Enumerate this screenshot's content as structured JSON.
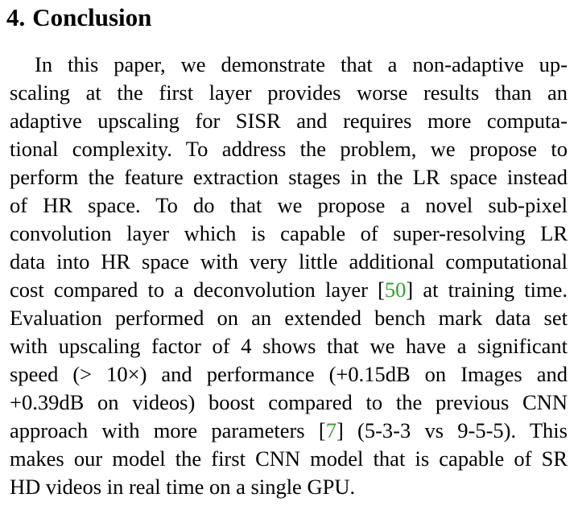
{
  "section": {
    "number": "4.",
    "title": "Conclusion"
  },
  "paragraph": {
    "lines": [
      [
        "In this paper, we demonstrate that a non-adaptive up-"
      ],
      [
        "scaling at the first layer provides worse results than an"
      ],
      [
        "adaptive upscaling for SISR and requires more computa-"
      ],
      [
        "tional complexity.  To address the problem, we propose to"
      ],
      [
        "perform the feature extraction stages in the LR space instead"
      ],
      [
        "of HR space.  To do that we propose a novel sub-pixel"
      ],
      [
        "convolution layer which is capable of super-resolving LR"
      ],
      [
        "data into HR space with very little additional computational"
      ],
      [
        "cost compared to a deconvolution layer ",
        "[",
        "50",
        "] at training time."
      ],
      [
        "Evaluation performed on an extended bench mark data set"
      ],
      [
        "with upscaling factor of 4 shows that we have a significant"
      ],
      [
        "speed (> 10×) and performance (+0.15dB on Images and"
      ],
      [
        "+0.39dB on videos) boost compared to the previous CNN"
      ],
      [
        "approach with more parameters ",
        "[",
        "7",
        "] (5-3-3 vs 9-5-5).  This"
      ],
      [
        "makes our model the first CNN model that is capable of SR"
      ],
      [
        "HD videos in real time on a single GPU."
      ]
    ]
  },
  "colors": {
    "citation": "#33a02c",
    "text": "#000000"
  }
}
